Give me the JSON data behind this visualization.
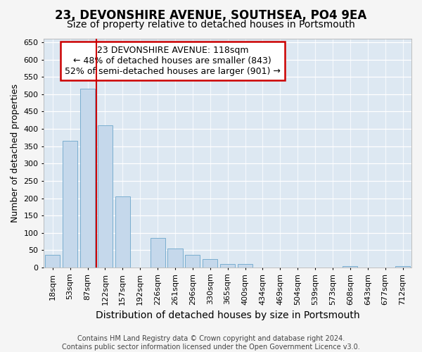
{
  "title": "23, DEVONSHIRE AVENUE, SOUTHSEA, PO4 9EA",
  "subtitle": "Size of property relative to detached houses in Portsmouth",
  "xlabel": "Distribution of detached houses by size in Portsmouth",
  "ylabel": "Number of detached properties",
  "categories": [
    "18sqm",
    "53sqm",
    "87sqm",
    "122sqm",
    "157sqm",
    "192sqm",
    "226sqm",
    "261sqm",
    "296sqm",
    "330sqm",
    "365sqm",
    "400sqm",
    "434sqm",
    "469sqm",
    "504sqm",
    "539sqm",
    "573sqm",
    "608sqm",
    "643sqm",
    "677sqm",
    "712sqm"
  ],
  "values": [
    37,
    365,
    515,
    410,
    205,
    0,
    85,
    55,
    37,
    25,
    10,
    10,
    0,
    0,
    0,
    0,
    0,
    5,
    0,
    0,
    5
  ],
  "bar_color": "#c5d8eb",
  "bar_edge_color": "#7aaed0",
  "bg_color": "#dde8f2",
  "fig_bg_color": "#f5f5f5",
  "vline_position": 2.5,
  "vline_color": "#cc0000",
  "annotation_line1": "23 DEVONSHIRE AVENUE: 118sqm",
  "annotation_line2": "← 48% of detached houses are smaller (843)",
  "annotation_line3": "52% of semi-detached houses are larger (901) →",
  "ann_box_facecolor": "#ffffff",
  "ann_box_edgecolor": "#cc0000",
  "ylim": [
    0,
    660
  ],
  "yticks": [
    0,
    50,
    100,
    150,
    200,
    250,
    300,
    350,
    400,
    450,
    500,
    550,
    600,
    650
  ],
  "footer": "Contains HM Land Registry data © Crown copyright and database right 2024.\nContains public sector information licensed under the Open Government Licence v3.0.",
  "title_fontsize": 12,
  "subtitle_fontsize": 10,
  "xlabel_fontsize": 10,
  "ylabel_fontsize": 9,
  "footer_fontsize": 7,
  "ann_fontsize": 9,
  "tick_fontsize": 8
}
